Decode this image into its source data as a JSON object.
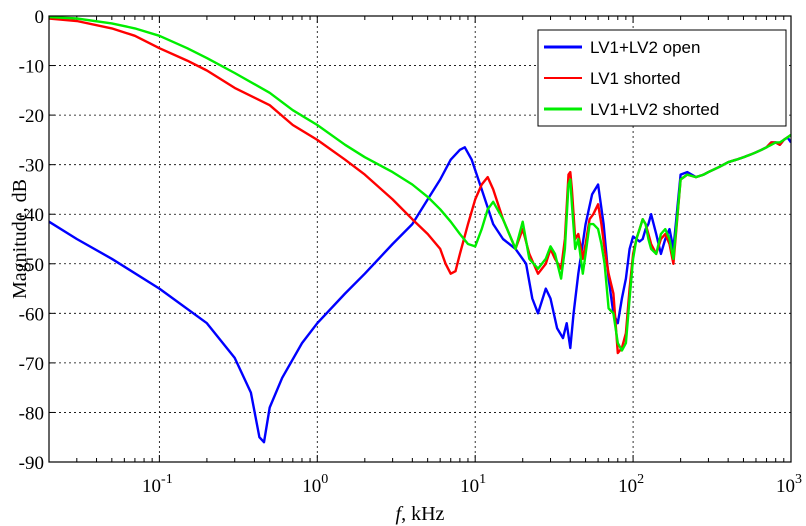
{
  "chart_data": {
    "type": "line",
    "xlabel_var": "f",
    "xlabel_unit": ", kHz",
    "ylabel": "Magnitude, dB",
    "x_scale": "log",
    "xlim": [
      0.02,
      1000
    ],
    "ylim": [
      -90,
      0
    ],
    "x_ticks": [
      {
        "value": 0.1,
        "base": "10",
        "exp": "-1"
      },
      {
        "value": 1,
        "base": "10",
        "exp": "0"
      },
      {
        "value": 10,
        "base": "10",
        "exp": "1"
      },
      {
        "value": 100,
        "base": "10",
        "exp": "2"
      },
      {
        "value": 1000,
        "base": "10",
        "exp": "3"
      }
    ],
    "y_ticks": [
      "0",
      "-10",
      "-20",
      "-30",
      "-40",
      "-50",
      "-60",
      "-70",
      "-80",
      "-90"
    ],
    "grid": true,
    "legend_position": "top-right",
    "series": [
      {
        "name": "LV1+LV2 open",
        "color": "#0000ff",
        "x": [
          0.02,
          0.03,
          0.05,
          0.1,
          0.2,
          0.3,
          0.38,
          0.43,
          0.46,
          0.5,
          0.6,
          0.8,
          1,
          1.5,
          2,
          3,
          4,
          5,
          6,
          7,
          8,
          8.6,
          9.5,
          11,
          13,
          15,
          18,
          21,
          23,
          25,
          28,
          30,
          33,
          36,
          38,
          40,
          42,
          45,
          50,
          55,
          60,
          65,
          70,
          75,
          80,
          85,
          90,
          95,
          100,
          105,
          110,
          115,
          120,
          125,
          130,
          140,
          150,
          160,
          170,
          180,
          200,
          220,
          250,
          280,
          300,
          350,
          400,
          450,
          500,
          550,
          600,
          650,
          700,
          750,
          800,
          850,
          900,
          950,
          1000
        ],
        "y": [
          -41.5,
          -45,
          -49,
          -55,
          -62,
          -69,
          -76,
          -85,
          -86,
          -79,
          -73,
          -66,
          -62,
          -56,
          -52,
          -46,
          -42,
          -37,
          -33,
          -29,
          -27,
          -26.5,
          -29,
          -35,
          -42,
          -45,
          -47,
          -50,
          -57,
          -60,
          -55,
          -57,
          -63,
          -65,
          -62,
          -67,
          -60,
          -52,
          -42,
          -36,
          -34,
          -42,
          -53,
          -60,
          -62,
          -57,
          -53,
          -47,
          -44.5,
          -45,
          -45.5,
          -45,
          -43,
          -42,
          -40,
          -44,
          -48,
          -45,
          -43,
          -47,
          -32,
          -31.5,
          -32.5,
          -32,
          -31.5,
          -30.5,
          -29.5,
          -29,
          -28.5,
          -28,
          -27.5,
          -27,
          -26.5,
          -25.5,
          -25.5,
          -26,
          -25,
          -24.5,
          -25.5
        ]
      },
      {
        "name": "LV1 shorted",
        "color": "#ff0000",
        "x": [
          0.02,
          0.03,
          0.05,
          0.07,
          0.1,
          0.15,
          0.2,
          0.3,
          0.5,
          0.7,
          1,
          1.5,
          2,
          3,
          4,
          5,
          6,
          6.5,
          7,
          7.5,
          8,
          9,
          10,
          11,
          12,
          13,
          15,
          18,
          20,
          22,
          25,
          28,
          30,
          32,
          35,
          37,
          39,
          40,
          41,
          43,
          45,
          48,
          50,
          53,
          56,
          60,
          63,
          66,
          70,
          75,
          80,
          85,
          90,
          95,
          100,
          105,
          110,
          115,
          120,
          125,
          130,
          140,
          150,
          160,
          170,
          180,
          200,
          220,
          250,
          280,
          300,
          350,
          400,
          450,
          500,
          550,
          600,
          650,
          700,
          750,
          800,
          850,
          900,
          950,
          1000
        ],
        "y": [
          -0.5,
          -1,
          -2.5,
          -4,
          -6.5,
          -9,
          -11,
          -14.5,
          -18,
          -22,
          -25,
          -29,
          -32,
          -37,
          -41,
          -44,
          -47,
          -50,
          -52,
          -51.5,
          -48,
          -42,
          -37,
          -34,
          -32.5,
          -35,
          -41,
          -47,
          -43,
          -48,
          -52,
          -50,
          -47,
          -49,
          -51,
          -45,
          -32,
          -31.5,
          -35,
          -45,
          -44,
          -49,
          -46,
          -41,
          -40,
          -38,
          -42,
          -47,
          -52,
          -56,
          -68,
          -67,
          -64,
          -55,
          -48,
          -45,
          -43,
          -41,
          -42,
          -44,
          -46,
          -48,
          -45,
          -44,
          -46,
          -50,
          -33,
          -32,
          -32.5,
          -32,
          -31.5,
          -30.5,
          -29.5,
          -29,
          -28.5,
          -28,
          -27.5,
          -27,
          -26.5,
          -25.5,
          -25.5,
          -26,
          -25,
          -24.5,
          -24
        ]
      },
      {
        "name": "LV1+LV2 shorted",
        "color": "#00ee00",
        "x": [
          0.02,
          0.03,
          0.05,
          0.07,
          0.1,
          0.15,
          0.2,
          0.3,
          0.5,
          0.7,
          1,
          1.5,
          2,
          3,
          4,
          5,
          6,
          7,
          8,
          9,
          10,
          11,
          12,
          13,
          15,
          18,
          20,
          22,
          25,
          28,
          30,
          32,
          35,
          37,
          39,
          40,
          41,
          43,
          45,
          48,
          50,
          53,
          56,
          60,
          63,
          66,
          70,
          75,
          80,
          85,
          90,
          95,
          100,
          105,
          110,
          115,
          120,
          125,
          130,
          140,
          150,
          160,
          170,
          180,
          200,
          220,
          250,
          280,
          300,
          350,
          400,
          450,
          500,
          550,
          600,
          650,
          700,
          750,
          800,
          850,
          900,
          950,
          1000
        ],
        "y": [
          -0.2,
          -0.5,
          -1.5,
          -2.5,
          -4,
          -6.5,
          -8.5,
          -11.5,
          -15.5,
          -19,
          -22,
          -26,
          -28.5,
          -31.5,
          -34,
          -36.5,
          -39,
          -41.5,
          -44,
          -46,
          -46.5,
          -43,
          -39,
          -37.5,
          -41,
          -47,
          -41.5,
          -49,
          -51,
          -49,
          -46.5,
          -48,
          -53,
          -47,
          -34,
          -33,
          -38,
          -47,
          -45,
          -52,
          -48,
          -42,
          -42,
          -43,
          -46,
          -50,
          -59,
          -60,
          -66,
          -67.5,
          -66,
          -57,
          -49,
          -45,
          -43,
          -41,
          -42,
          -45,
          -47,
          -48,
          -44,
          -43,
          -45,
          -49,
          -33,
          -32,
          -32.5,
          -32,
          -31.5,
          -30.5,
          -29.5,
          -29,
          -28.5,
          -28,
          -27.5,
          -27,
          -26.5,
          -26,
          -25.5,
          -25.5,
          -25,
          -24.5,
          -24
        ]
      }
    ]
  }
}
